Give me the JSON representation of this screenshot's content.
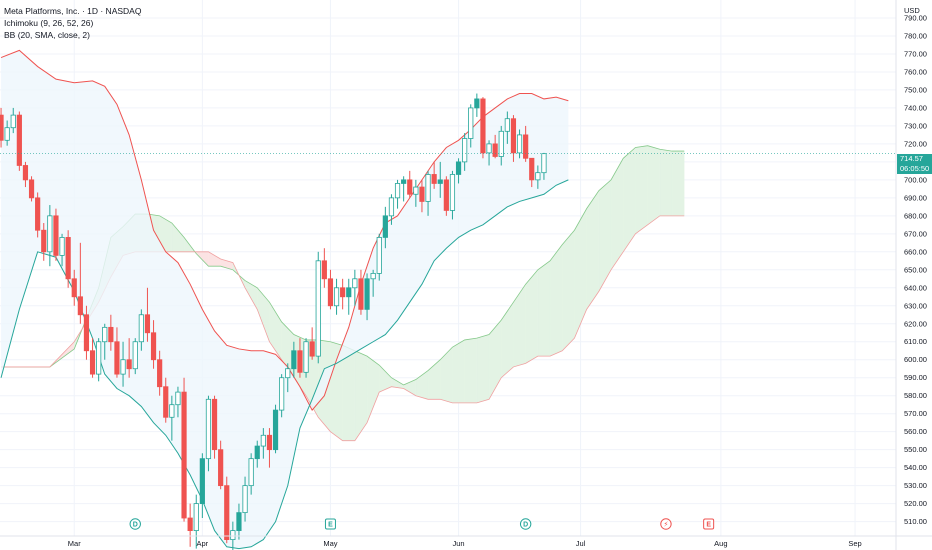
{
  "legend": {
    "symbol": "Meta Platforms, Inc. · 1D · NASDAQ",
    "indicator_1": "Ichimoku (9, 26, 52, 26)",
    "indicator_2": "BB (20, SMA, close, 2)"
  },
  "price_axis": {
    "currency": "USD",
    "last_price": "714.57",
    "countdown": "06:05:50"
  },
  "colors": {
    "up": "#26a69a",
    "down": "#ef5350",
    "bb_upper": "#ef5350",
    "bb_lower": "#26a69a",
    "bb_fill": "#eef6fd",
    "cloud_bull": "#e3f3e4",
    "cloud_bear": "#fbe3e3",
    "cloud_bull_edge": "#86c98b",
    "cloud_bear_edge": "#f0a1a1"
  },
  "chart_data": {
    "type": "candlestick",
    "title": "Meta Platforms, Inc. · 1D · NASDAQ",
    "y_range": [
      502,
      800
    ],
    "y_ticks": [
      510,
      520,
      530,
      540,
      550,
      560,
      570,
      580,
      590,
      600,
      610,
      620,
      630,
      640,
      650,
      660,
      670,
      680,
      690,
      700,
      710,
      720,
      730,
      740,
      750,
      760,
      770,
      780,
      790
    ],
    "x_labels": [
      {
        "label": "Mar",
        "index": 12
      },
      {
        "label": "Apr",
        "index": 33
      },
      {
        "label": "May",
        "index": 54
      },
      {
        "label": "Jun",
        "index": 75
      },
      {
        "label": "Jul",
        "index": 95
      },
      {
        "label": "Aug",
        "index": 118
      },
      {
        "label": "Sep",
        "index": 140
      }
    ],
    "bar_count": 146,
    "candles": [
      [
        736,
        740,
        718,
        722
      ],
      [
        722,
        733,
        719,
        729
      ],
      [
        729,
        740,
        726,
        736
      ],
      [
        736,
        738,
        705,
        708
      ],
      [
        708,
        710,
        696,
        700
      ],
      [
        700,
        702,
        688,
        690
      ],
      [
        690,
        693,
        668,
        672
      ],
      [
        672,
        676,
        655,
        660
      ],
      [
        660,
        686,
        652,
        680
      ],
      [
        680,
        684,
        655,
        658
      ],
      [
        658,
        670,
        652,
        668
      ],
      [
        668,
        672,
        640,
        645
      ],
      [
        645,
        650,
        630,
        635
      ],
      [
        635,
        665,
        620,
        625
      ],
      [
        625,
        630,
        600,
        605
      ],
      [
        605,
        612,
        590,
        592
      ],
      [
        592,
        612,
        588,
        610
      ],
      [
        610,
        620,
        600,
        618
      ],
      [
        618,
        625,
        605,
        610
      ],
      [
        610,
        618,
        590,
        592
      ],
      [
        592,
        610,
        585,
        600
      ],
      [
        600,
        612,
        590,
        595
      ],
      [
        595,
        612,
        592,
        610
      ],
      [
        610,
        628,
        605,
        625
      ],
      [
        625,
        640,
        610,
        615
      ],
      [
        615,
        622,
        595,
        600
      ],
      [
        600,
        605,
        580,
        585
      ],
      [
        585,
        590,
        565,
        568
      ],
      [
        568,
        580,
        555,
        575
      ],
      [
        575,
        585,
        568,
        582
      ],
      [
        582,
        590,
        510,
        512
      ],
      [
        512,
        520,
        496,
        505
      ],
      [
        505,
        525,
        495,
        520
      ],
      [
        520,
        548,
        512,
        545
      ],
      [
        545,
        580,
        538,
        578
      ],
      [
        578,
        580,
        545,
        550
      ],
      [
        550,
        555,
        528,
        530
      ],
      [
        530,
        535,
        498,
        500
      ],
      [
        500,
        510,
        492,
        505
      ],
      [
        505,
        520,
        500,
        515
      ],
      [
        515,
        535,
        510,
        530
      ],
      [
        530,
        548,
        525,
        545
      ],
      [
        545,
        555,
        540,
        552
      ],
      [
        552,
        562,
        545,
        558
      ],
      [
        558,
        562,
        540,
        550
      ],
      [
        550,
        575,
        548,
        572
      ],
      [
        572,
        592,
        568,
        590
      ],
      [
        590,
        598,
        582,
        595
      ],
      [
        595,
        610,
        590,
        605
      ],
      [
        605,
        612,
        590,
        593
      ],
      [
        593,
        612,
        590,
        610
      ],
      [
        610,
        618,
        600,
        602
      ],
      [
        602,
        660,
        598,
        655
      ],
      [
        655,
        662,
        640,
        645
      ],
      [
        645,
        650,
        628,
        630
      ],
      [
        630,
        645,
        625,
        640
      ],
      [
        640,
        645,
        628,
        635
      ],
      [
        635,
        645,
        625,
        640
      ],
      [
        640,
        650,
        630,
        645
      ],
      [
        645,
        650,
        625,
        628
      ],
      [
        628,
        648,
        622,
        645
      ],
      [
        645,
        650,
        635,
        648
      ],
      [
        648,
        670,
        644,
        668
      ],
      [
        668,
        685,
        662,
        680
      ],
      [
        680,
        692,
        675,
        690
      ],
      [
        690,
        700,
        684,
        698
      ],
      [
        698,
        702,
        688,
        700
      ],
      [
        700,
        705,
        690,
        692
      ],
      [
        692,
        700,
        685,
        696
      ],
      [
        696,
        700,
        682,
        688
      ],
      [
        688,
        705,
        680,
        703
      ],
      [
        703,
        710,
        695,
        698
      ],
      [
        698,
        710,
        690,
        700
      ],
      [
        700,
        702,
        680,
        683
      ],
      [
        683,
        705,
        678,
        703
      ],
      [
        703,
        712,
        698,
        710
      ],
      [
        710,
        726,
        705,
        723
      ],
      [
        723,
        742,
        718,
        740
      ],
      [
        740,
        748,
        735,
        745
      ],
      [
        745,
        746,
        712,
        715
      ],
      [
        715,
        722,
        708,
        720
      ],
      [
        720,
        725,
        712,
        713
      ],
      [
        713,
        730,
        708,
        727
      ],
      [
        727,
        738,
        720,
        734
      ],
      [
        734,
        736,
        710,
        715
      ],
      [
        715,
        728,
        712,
        725
      ],
      [
        725,
        730,
        710,
        712
      ],
      [
        712,
        712,
        696,
        700
      ],
      [
        700,
        708,
        695,
        704
      ],
      [
        704,
        715,
        700,
        714.57
      ]
    ],
    "bb_upper_points": [
      [
        0,
        768
      ],
      [
        3,
        772
      ],
      [
        6,
        763
      ],
      [
        9,
        756
      ],
      [
        12,
        754
      ],
      [
        15,
        755
      ],
      [
        17,
        752
      ],
      [
        19,
        742
      ],
      [
        21,
        725
      ],
      [
        23,
        700
      ],
      [
        25,
        672
      ],
      [
        27,
        660
      ],
      [
        29,
        654
      ],
      [
        31,
        642
      ],
      [
        33,
        628
      ],
      [
        35,
        616
      ],
      [
        37,
        608
      ],
      [
        39,
        606
      ],
      [
        41,
        605
      ],
      [
        43,
        605
      ],
      [
        45,
        603
      ],
      [
        47,
        596
      ],
      [
        49,
        585
      ],
      [
        51,
        572
      ],
      [
        53,
        580
      ],
      [
        55,
        600
      ],
      [
        57,
        618
      ],
      [
        59,
        642
      ],
      [
        61,
        662
      ],
      [
        63,
        676
      ],
      [
        65,
        680
      ],
      [
        67,
        690
      ],
      [
        69,
        700
      ],
      [
        71,
        710
      ],
      [
        73,
        718
      ],
      [
        75,
        722
      ],
      [
        77,
        728
      ],
      [
        79,
        735
      ],
      [
        81,
        740
      ],
      [
        83,
        745
      ],
      [
        85,
        748
      ],
      [
        87,
        748
      ],
      [
        89,
        745
      ],
      [
        91,
        746
      ],
      [
        93,
        744
      ]
    ],
    "bb_lower_points": [
      [
        0,
        590
      ],
      [
        3,
        628
      ],
      [
        6,
        660
      ],
      [
        9,
        657
      ],
      [
        12,
        638
      ],
      [
        15,
        612
      ],
      [
        17,
        592
      ],
      [
        19,
        584
      ],
      [
        21,
        580
      ],
      [
        23,
        574
      ],
      [
        25,
        565
      ],
      [
        27,
        558
      ],
      [
        29,
        548
      ],
      [
        31,
        536
      ],
      [
        33,
        522
      ],
      [
        35,
        505
      ],
      [
        37,
        496
      ],
      [
        39,
        495
      ],
      [
        41,
        496
      ],
      [
        43,
        500
      ],
      [
        45,
        510
      ],
      [
        47,
        530
      ],
      [
        49,
        562
      ],
      [
        51,
        578
      ],
      [
        53,
        595
      ],
      [
        55,
        598
      ],
      [
        57,
        602
      ],
      [
        59,
        606
      ],
      [
        61,
        610
      ],
      [
        63,
        614
      ],
      [
        65,
        622
      ],
      [
        67,
        632
      ],
      [
        69,
        642
      ],
      [
        71,
        655
      ],
      [
        73,
        662
      ],
      [
        75,
        668
      ],
      [
        77,
        672
      ],
      [
        79,
        675
      ],
      [
        81,
        680
      ],
      [
        83,
        685
      ],
      [
        85,
        688
      ],
      [
        87,
        690
      ],
      [
        89,
        692
      ],
      [
        91,
        697
      ],
      [
        93,
        700
      ]
    ],
    "cloud_span_a": [
      [
        0,
        596
      ],
      [
        8,
        596
      ],
      [
        12,
        606
      ],
      [
        16,
        640
      ],
      [
        18,
        668
      ],
      [
        20,
        674
      ],
      [
        22,
        681
      ],
      [
        24,
        681
      ],
      [
        26,
        680
      ],
      [
        28,
        676
      ],
      [
        30,
        668
      ],
      [
        32,
        659
      ],
      [
        34,
        652
      ],
      [
        36,
        652
      ],
      [
        38,
        650
      ],
      [
        40,
        644
      ],
      [
        42,
        640
      ],
      [
        44,
        632
      ],
      [
        46,
        621
      ],
      [
        48,
        614
      ],
      [
        50,
        611
      ],
      [
        52,
        611
      ],
      [
        54,
        610
      ],
      [
        56,
        608
      ],
      [
        58,
        605
      ],
      [
        60,
        602
      ],
      [
        62,
        597
      ],
      [
        64,
        590
      ],
      [
        66,
        586
      ],
      [
        68,
        589
      ],
      [
        70,
        594
      ],
      [
        72,
        600
      ],
      [
        74,
        607
      ],
      [
        76,
        611
      ],
      [
        78,
        612
      ],
      [
        80,
        614
      ],
      [
        82,
        622
      ],
      [
        84,
        632
      ],
      [
        86,
        642
      ],
      [
        88,
        650
      ],
      [
        90,
        655
      ],
      [
        92,
        664
      ],
      [
        94,
        672
      ],
      [
        96,
        684
      ],
      [
        98,
        694
      ],
      [
        100,
        700
      ],
      [
        102,
        712
      ],
      [
        104,
        718
      ],
      [
        106,
        719
      ],
      [
        108,
        717
      ],
      [
        110,
        716
      ],
      [
        112,
        716
      ]
    ],
    "cloud_span_b": [
      [
        0,
        596
      ],
      [
        8,
        596
      ],
      [
        12,
        610
      ],
      [
        16,
        632
      ],
      [
        18,
        646
      ],
      [
        20,
        658
      ],
      [
        22,
        660
      ],
      [
        24,
        660
      ],
      [
        26,
        660
      ],
      [
        28,
        660
      ],
      [
        30,
        660
      ],
      [
        32,
        660
      ],
      [
        34,
        660
      ],
      [
        36,
        656
      ],
      [
        38,
        654
      ],
      [
        40,
        640
      ],
      [
        42,
        628
      ],
      [
        44,
        610
      ],
      [
        46,
        600
      ],
      [
        48,
        590
      ],
      [
        50,
        580
      ],
      [
        52,
        568
      ],
      [
        54,
        560
      ],
      [
        56,
        555
      ],
      [
        58,
        555
      ],
      [
        60,
        565
      ],
      [
        62,
        582
      ],
      [
        64,
        585
      ],
      [
        66,
        584
      ],
      [
        68,
        580
      ],
      [
        70,
        578
      ],
      [
        72,
        578
      ],
      [
        74,
        576
      ],
      [
        76,
        576
      ],
      [
        78,
        576
      ],
      [
        80,
        578
      ],
      [
        82,
        590
      ],
      [
        84,
        596
      ],
      [
        86,
        598
      ],
      [
        88,
        602
      ],
      [
        90,
        602
      ],
      [
        92,
        605
      ],
      [
        94,
        612
      ],
      [
        96,
        628
      ],
      [
        98,
        638
      ],
      [
        100,
        650
      ],
      [
        102,
        660
      ],
      [
        104,
        670
      ],
      [
        106,
        675
      ],
      [
        108,
        680
      ],
      [
        110,
        680
      ],
      [
        112,
        680
      ]
    ],
    "events": [
      {
        "type": "dividend",
        "label": "D",
        "index": 22
      },
      {
        "type": "earnings",
        "label": "E",
        "index": 54
      },
      {
        "type": "dividend",
        "label": "D",
        "index": 86
      },
      {
        "type": "split",
        "label": "⚡",
        "index": 109
      },
      {
        "type": "earnings",
        "label": "E",
        "index": 116
      }
    ]
  }
}
